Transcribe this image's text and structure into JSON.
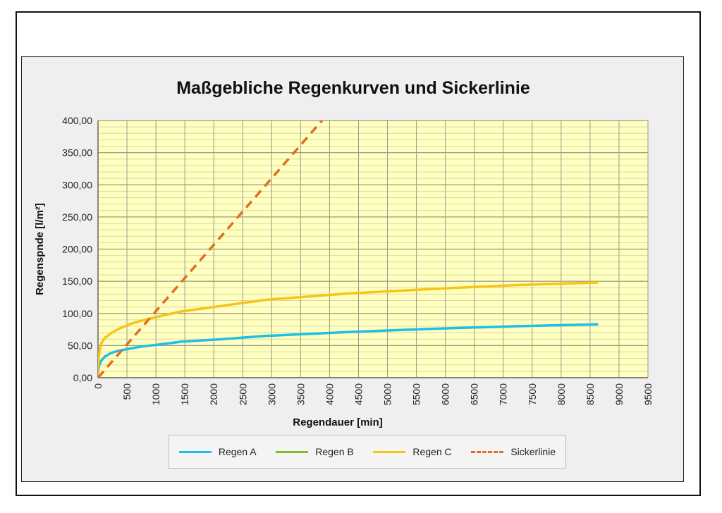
{
  "chart_data": {
    "type": "line",
    "title": "Maßgebliche Regenkurven und Sickerlinie",
    "xlabel": "Regendauer [min]",
    "ylabel": "Regenspnde [l/m²]",
    "xlim": [
      0,
      9500
    ],
    "ylim": [
      0,
      400
    ],
    "x_ticks": [
      "0",
      "500",
      "1000",
      "1500",
      "2000",
      "2500",
      "3000",
      "3500",
      "4000",
      "4500",
      "5000",
      "5500",
      "6000",
      "6500",
      "7000",
      "7500",
      "8000",
      "8500",
      "9000",
      "9500"
    ],
    "y_ticks": [
      "0,00",
      "50,00",
      "100,00",
      "150,00",
      "200,00",
      "250,00",
      "300,00",
      "350,00",
      "400,00"
    ],
    "grid": true,
    "legend_position": "bottom",
    "series": [
      {
        "name": "Regen A",
        "color": "#1fbfe8",
        "dashed": false,
        "x": [
          0,
          5,
          15,
          30,
          60,
          120,
          240,
          360,
          540,
          720,
          1080,
          1440,
          2160,
          2880,
          4320,
          5760,
          7200,
          8640
        ],
        "y": [
          0,
          10,
          17,
          22,
          27,
          33,
          39,
          42,
          45,
          48,
          52,
          56,
          60,
          65,
          71,
          76,
          80,
          83
        ]
      },
      {
        "name": "Regen B",
        "color": "#7fbf2a",
        "dashed": false,
        "x": [],
        "y": []
      },
      {
        "name": "Regen C",
        "color": "#f5c518",
        "dashed": false,
        "x": [
          0,
          5,
          15,
          30,
          60,
          120,
          240,
          360,
          540,
          720,
          1080,
          1440,
          2160,
          2880,
          4320,
          5760,
          7200,
          8640
        ],
        "y": [
          0,
          20,
          33,
          43,
          54,
          62,
          70,
          76,
          83,
          88,
          96,
          103,
          112,
          121,
          131,
          138,
          144,
          148
        ]
      },
      {
        "name": "Sickerlinie",
        "color": "#e07020",
        "dashed": true,
        "x": [
          0,
          3870
        ],
        "y": [
          0,
          400
        ]
      }
    ]
  }
}
